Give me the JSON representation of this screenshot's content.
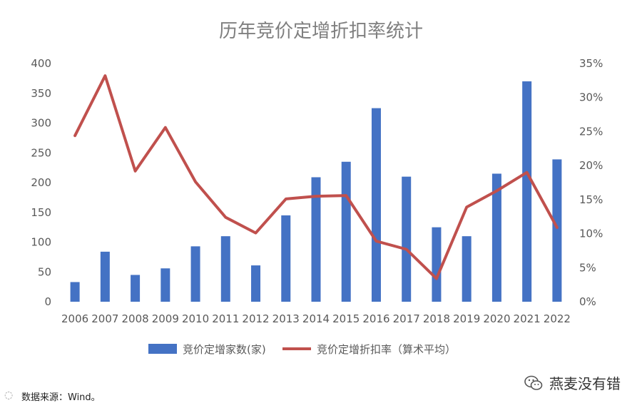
{
  "chart_data": {
    "type": "bar+line",
    "title": "历年竞价定增折扣率统计",
    "categories": [
      "2006",
      "2007",
      "2008",
      "2009",
      "2010",
      "2011",
      "2012",
      "2013",
      "2014",
      "2015",
      "2016",
      "2017",
      "2018",
      "2019",
      "2020",
      "2021",
      "2022"
    ],
    "series": [
      {
        "name": "竞价定增家数(家)",
        "type": "bar",
        "axis": "left",
        "color": "#4472c4",
        "values": [
          33,
          84,
          45,
          56,
          93,
          110,
          61,
          145,
          209,
          235,
          325,
          210,
          125,
          110,
          215,
          370,
          239
        ]
      },
      {
        "name": "竞价定增折扣率（算术平均）",
        "type": "line",
        "axis": "right",
        "color": "#c0504d",
        "values": [
          24.4,
          33.2,
          19.2,
          25.6,
          17.6,
          12.4,
          10.1,
          15.1,
          15.5,
          15.6,
          8.9,
          7.7,
          3.4,
          13.9,
          16.3,
          19.0,
          10.9
        ]
      }
    ],
    "y_left": {
      "ylim": [
        0,
        400
      ],
      "ticks": [
        "0",
        "50",
        "100",
        "150",
        "200",
        "250",
        "300",
        "350",
        "400"
      ]
    },
    "y_right": {
      "ylim": [
        0,
        35
      ],
      "ticks": [
        "0%",
        "5%",
        "10%",
        "15%",
        "20%",
        "25%",
        "30%",
        "35%"
      ]
    },
    "legend_position": "bottom",
    "grid": false
  },
  "source_text": "数据来源：Wind。",
  "watermark_text": "燕麦没有错"
}
